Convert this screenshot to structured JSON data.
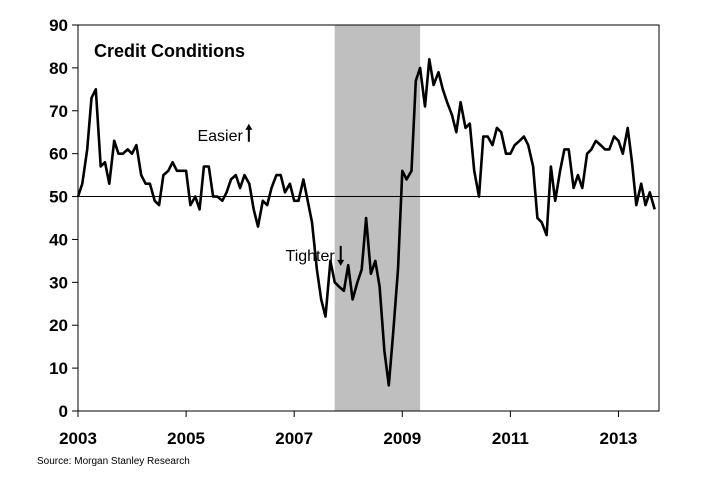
{
  "chart_data": {
    "type": "line",
    "title": "Credit Conditions",
    "xlabel": "",
    "ylabel": "",
    "xlim": [
      2003,
      2013.75
    ],
    "ylim": [
      0,
      90
    ],
    "yticks": [
      0,
      10,
      20,
      30,
      40,
      50,
      60,
      70,
      80,
      90
    ],
    "xticks": [
      "2003",
      "2005",
      "2007",
      "2009",
      "2011",
      "2013"
    ],
    "grid": false,
    "legend": "none",
    "reference_line": 50,
    "shaded_region": [
      2007.75,
      2009.33
    ],
    "annotations": [
      {
        "text": "Easier",
        "arrow": "up",
        "x": 2006.05,
        "y": 63
      },
      {
        "text": "Tighter",
        "arrow": "down",
        "x": 2007.75,
        "y": 35
      }
    ],
    "source": "Source: Morgan Stanley Research",
    "colors": {
      "line": "#000000",
      "shade": "#bfbfbf",
      "axis": "#000000"
    },
    "series": [
      {
        "x": [
          2003.0,
          2003.08,
          2003.17,
          2003.25,
          2003.33,
          2003.42,
          2003.5,
          2003.58,
          2003.67,
          2003.75,
          2003.83,
          2003.92,
          2004.0,
          2004.08,
          2004.17,
          2004.25,
          2004.33,
          2004.42,
          2004.5,
          2004.58,
          2004.67,
          2004.75,
          2004.83,
          2004.92,
          2005.0,
          2005.08,
          2005.17,
          2005.25,
          2005.33,
          2005.42,
          2005.5,
          2005.58,
          2005.67,
          2005.75,
          2005.83,
          2005.92,
          2006.0,
          2006.08,
          2006.17,
          2006.25,
          2006.33,
          2006.42,
          2006.5,
          2006.58,
          2006.67,
          2006.75,
          2006.83,
          2006.92,
          2007.0,
          2007.08,
          2007.17,
          2007.25,
          2007.33,
          2007.42,
          2007.5,
          2007.58,
          2007.67,
          2007.75,
          2007.83,
          2007.92,
          2008.0,
          2008.08,
          2008.17,
          2008.25,
          2008.33,
          2008.42,
          2008.5,
          2008.58,
          2008.67,
          2008.75,
          2008.83,
          2008.92,
          2009.0,
          2009.08,
          2009.17,
          2009.25,
          2009.33,
          2009.42,
          2009.5,
          2009.58,
          2009.67,
          2009.75,
          2009.83,
          2009.92,
          2010.0,
          2010.08,
          2010.17,
          2010.25,
          2010.33,
          2010.42,
          2010.5,
          2010.58,
          2010.67,
          2010.75,
          2010.83,
          2010.92,
          2011.0,
          2011.08,
          2011.17,
          2011.25,
          2011.33,
          2011.42,
          2011.5,
          2011.58,
          2011.67,
          2011.75,
          2011.83,
          2011.92,
          2012.0,
          2012.08,
          2012.17,
          2012.25,
          2012.33,
          2012.42,
          2012.5,
          2012.58,
          2012.67,
          2012.75,
          2012.83,
          2012.92,
          2013.0,
          2013.08,
          2013.17,
          2013.25,
          2013.33,
          2013.42,
          2013.5,
          2013.58,
          2013.67
        ],
        "values": [
          50,
          53,
          61,
          73,
          75,
          57,
          58,
          53,
          63,
          60,
          60,
          61,
          60,
          62,
          55,
          53,
          53,
          49,
          48,
          55,
          56,
          58,
          56,
          56,
          56,
          48,
          50,
          47,
          57,
          57,
          50,
          50,
          49,
          51,
          54,
          55,
          52,
          55,
          53,
          47,
          43,
          49,
          48,
          52,
          55,
          55,
          51,
          53,
          49,
          49,
          54,
          49,
          44,
          33,
          26,
          22,
          35,
          30,
          29,
          28,
          34,
          26,
          30,
          33,
          45,
          32,
          35,
          29,
          14,
          6,
          18,
          33,
          56,
          54,
          56,
          77,
          80,
          71,
          82,
          76,
          79,
          75,
          72,
          69,
          65,
          72,
          66,
          67,
          56,
          50,
          64,
          64,
          62,
          66,
          65,
          60,
          60,
          62,
          63,
          64,
          62,
          57,
          45,
          44,
          41,
          57,
          49,
          56,
          61,
          61,
          52,
          55,
          52,
          60,
          61,
          63,
          62,
          61,
          61,
          64,
          63,
          60,
          66,
          58,
          48,
          53,
          48,
          51,
          47
        ]
      }
    ]
  }
}
